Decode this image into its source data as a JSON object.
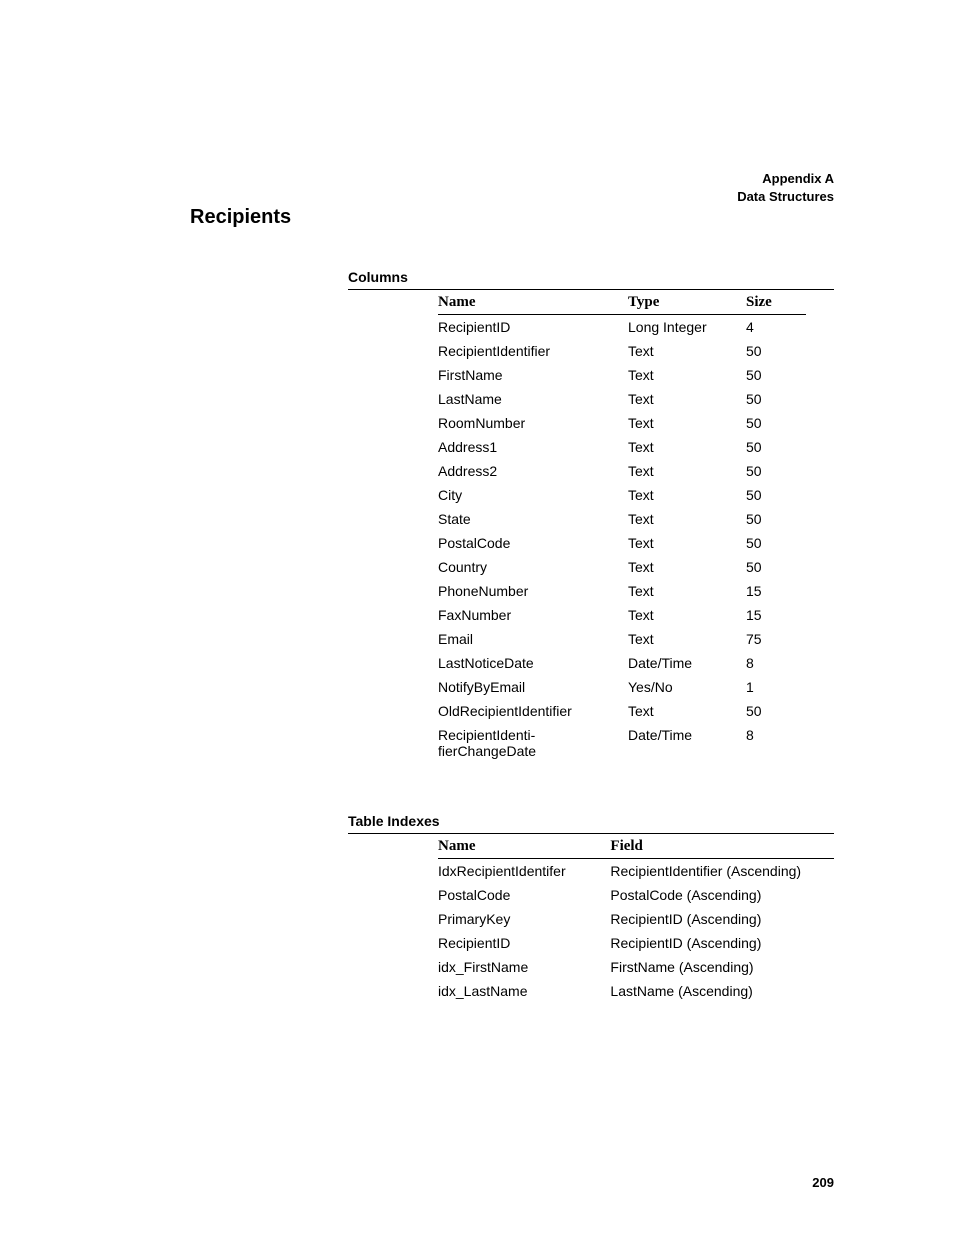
{
  "header": {
    "line1": "Appendix A",
    "line2": "Data Structures"
  },
  "heading": "Recipients",
  "columns_section": {
    "label": "Columns",
    "headers": {
      "name": "Name",
      "type": "Type",
      "size": "Size"
    },
    "rows": [
      {
        "name": "RecipientID",
        "type": "Long Integer",
        "size": "4"
      },
      {
        "name": "RecipientIdentifier",
        "type": "Text",
        "size": "50"
      },
      {
        "name": "FirstName",
        "type": "Text",
        "size": "50"
      },
      {
        "name": "LastName",
        "type": "Text",
        "size": "50"
      },
      {
        "name": "RoomNumber",
        "type": "Text",
        "size": "50"
      },
      {
        "name": "Address1",
        "type": "Text",
        "size": "50"
      },
      {
        "name": "Address2",
        "type": "Text",
        "size": "50"
      },
      {
        "name": "City",
        "type": "Text",
        "size": "50"
      },
      {
        "name": "State",
        "type": "Text",
        "size": "50"
      },
      {
        "name": "PostalCode",
        "type": "Text",
        "size": "50"
      },
      {
        "name": "Country",
        "type": "Text",
        "size": "50"
      },
      {
        "name": "PhoneNumber",
        "type": "Text",
        "size": "15"
      },
      {
        "name": "FaxNumber",
        "type": "Text",
        "size": "15"
      },
      {
        "name": "Email",
        "type": "Text",
        "size": "75"
      },
      {
        "name": "LastNoticeDate",
        "type": "Date/Time",
        "size": "8"
      },
      {
        "name": "NotifyByEmail",
        "type": "Yes/No",
        "size": "1"
      },
      {
        "name": "OldRecipientIdentifier",
        "type": "Text",
        "size": "50"
      },
      {
        "name": "RecipientIdenti-\nfierChangeDate",
        "type": "Date/Time",
        "size": "8"
      }
    ]
  },
  "indexes_section": {
    "label": "Table Indexes",
    "headers": {
      "name": "Name",
      "field": "Field"
    },
    "rows": [
      {
        "name": "IdxRecipientIdentifer",
        "field": "RecipientIdentifier (Ascending)"
      },
      {
        "name": "PostalCode",
        "field": "PostalCode (Ascending)"
      },
      {
        "name": "PrimaryKey",
        "field": "RecipientID (Ascending)"
      },
      {
        "name": "RecipientID",
        "field": "RecipientID (Ascending)"
      },
      {
        "name": "idx_FirstName",
        "field": "FirstName (Ascending)"
      },
      {
        "name": "idx_LastName",
        "field": "LastName (Ascending)"
      }
    ]
  },
  "page_number": "209"
}
